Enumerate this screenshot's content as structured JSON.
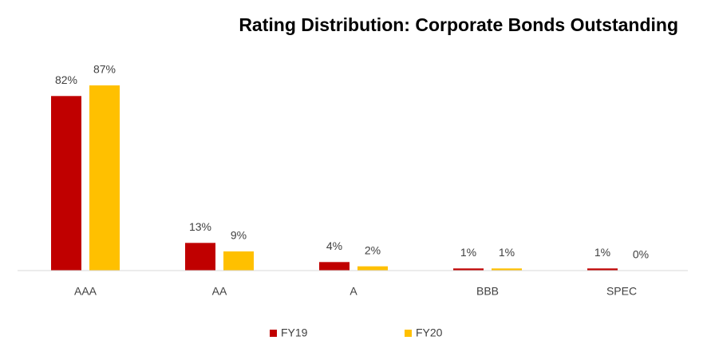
{
  "chart_data": {
    "type": "bar",
    "title": "Rating Distribution: Corporate Bonds Outstanding",
    "categories": [
      "AAA",
      "AA",
      "A",
      "BBB",
      "SPEC"
    ],
    "series": [
      {
        "name": "FY19",
        "color": "#c00000",
        "values": [
          82,
          13,
          4,
          1,
          1
        ],
        "value_labels": [
          "82%",
          "13%",
          "4%",
          "1%",
          "1%"
        ]
      },
      {
        "name": "FY20",
        "color": "#ffc000",
        "values": [
          87,
          9,
          2,
          1,
          0
        ],
        "value_labels": [
          "87%",
          "9%",
          "2%",
          "1%",
          "0%"
        ]
      }
    ],
    "legend": "bottom"
  }
}
